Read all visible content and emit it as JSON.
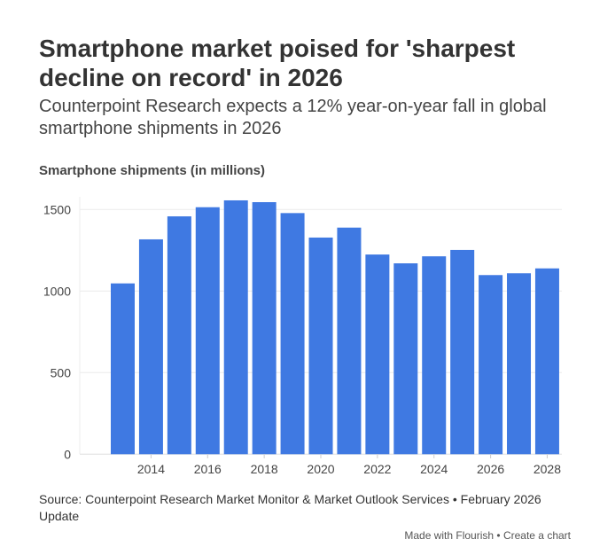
{
  "header": {
    "title": "Smartphone market poised for 'sharpest decline on record' in 2026",
    "subtitle": "Counterpoint Research expects a 12% year-on-year fall in global smartphone shipments in 2026"
  },
  "chart_data": {
    "type": "bar",
    "ylabel": "Smartphone shipments (in millions)",
    "categories": [
      2013,
      2014,
      2015,
      2016,
      2017,
      2018,
      2019,
      2020,
      2021,
      2022,
      2023,
      2024,
      2025,
      2026,
      2027,
      2028
    ],
    "values": [
      1047,
      1317,
      1458,
      1514,
      1556,
      1545,
      1478,
      1328,
      1389,
      1224,
      1170,
      1213,
      1252,
      1098,
      1109,
      1139
    ],
    "ylim": [
      0,
      1550
    ],
    "yticks": [
      0,
      500,
      1000,
      1500
    ],
    "xticks": [
      2014,
      2016,
      2018,
      2020,
      2022,
      2024,
      2026,
      2028
    ],
    "grid": true,
    "bar_color": "#3f79e2"
  },
  "source": "Source: Counterpoint Research Market Monitor & Market Outlook Services • February 2026 Update",
  "footer": {
    "made_with": "Made with Flourish",
    "separator": " • ",
    "create": "Create a chart"
  }
}
